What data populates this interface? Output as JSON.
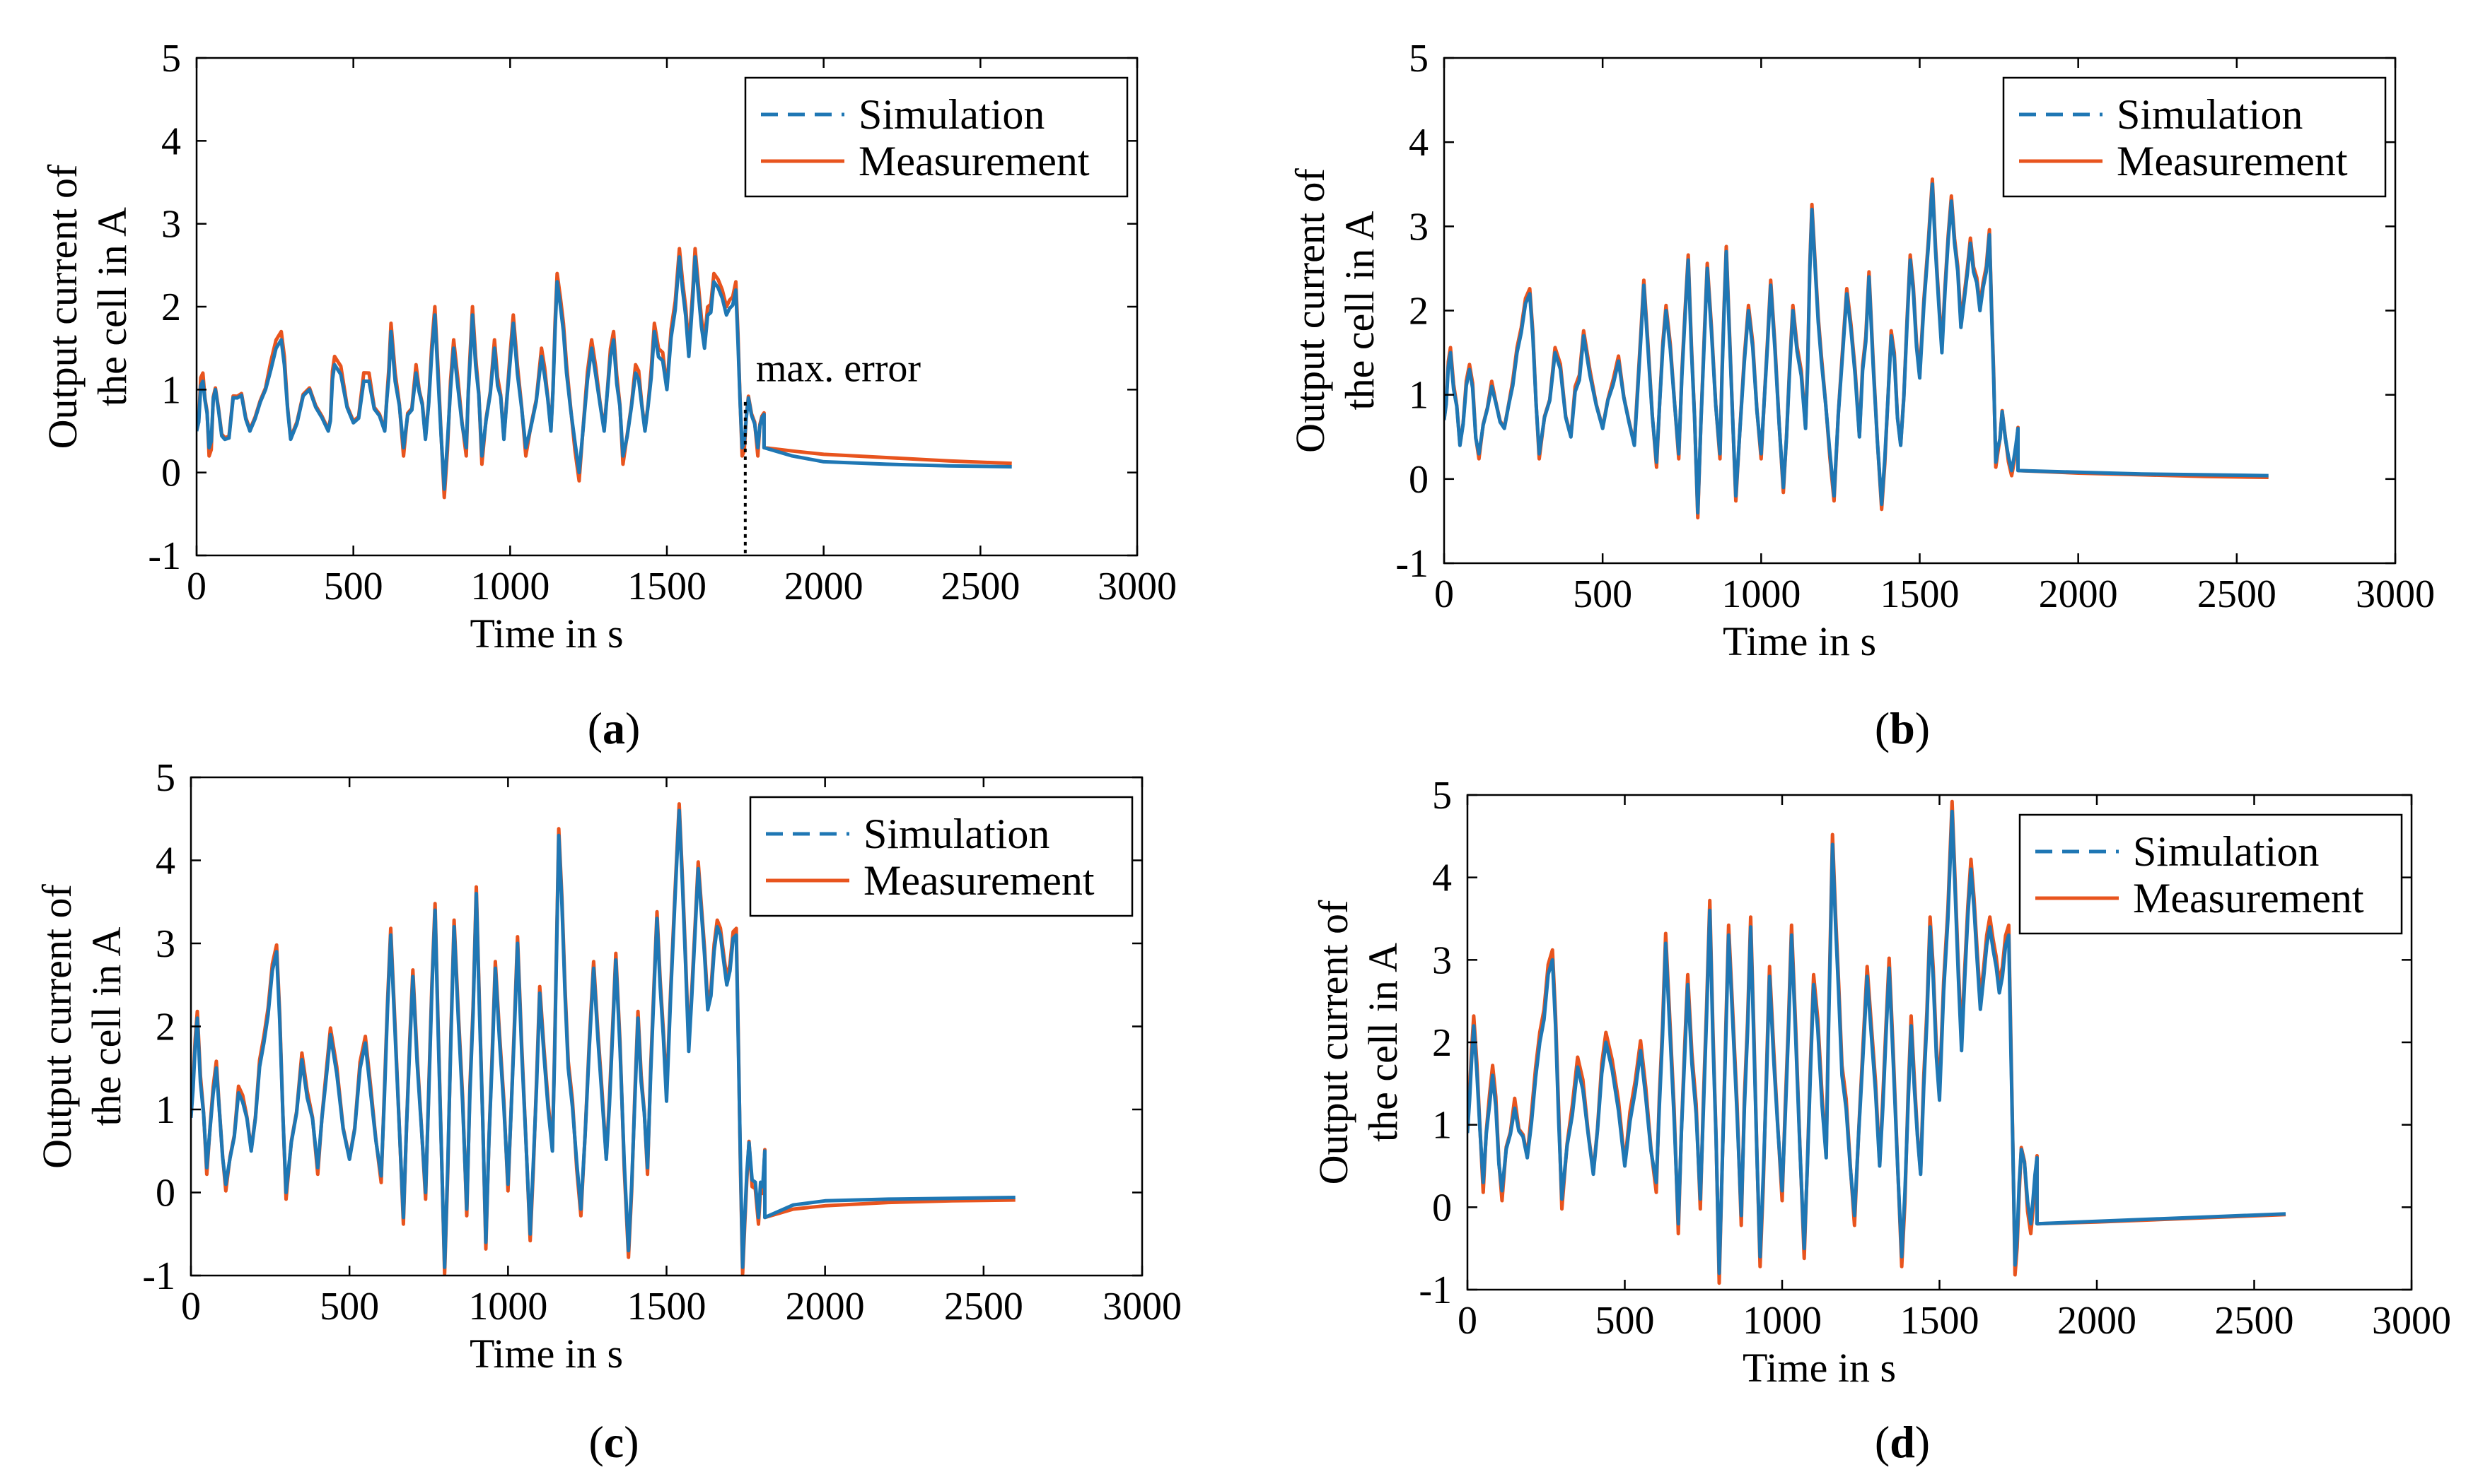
{
  "chart_data": [
    {
      "type": "line",
      "panel": "a",
      "caption_letter": "a",
      "caption_open": "(",
      "caption_close": ")",
      "xlabel": "Time in s",
      "ylabel_line1": "Output current of",
      "ylabel_line2": "the cell in A",
      "xlim": [
        0,
        3000
      ],
      "ylim": [
        -1,
        5
      ],
      "xticks": [
        "0",
        "500",
        "1000",
        "1500",
        "2000",
        "2500",
        "3000"
      ],
      "yticks": [
        "-1",
        "0",
        "1",
        "2",
        "3",
        "4",
        "5"
      ],
      "legend": [
        "Simulation",
        "Measurement"
      ],
      "legend_position": "top-right",
      "annotation": {
        "text": "max. error",
        "x": 1750
      },
      "peaks": [
        [
          0,
          0.5
        ],
        [
          20,
          1.1
        ],
        [
          40,
          0.3
        ],
        [
          60,
          1.0
        ],
        [
          90,
          0.4
        ],
        [
          130,
          0.9
        ],
        [
          170,
          0.5
        ],
        [
          220,
          1.0
        ],
        [
          270,
          1.6
        ],
        [
          300,
          0.4
        ],
        [
          360,
          1.0
        ],
        [
          420,
          0.5
        ],
        [
          440,
          1.3
        ],
        [
          500,
          0.6
        ],
        [
          550,
          1.1
        ],
        [
          600,
          0.5
        ],
        [
          620,
          1.7
        ],
        [
          660,
          0.3
        ],
        [
          700,
          1.2
        ],
        [
          730,
          0.4
        ],
        [
          760,
          1.9
        ],
        [
          790,
          -0.2
        ],
        [
          820,
          1.5
        ],
        [
          860,
          0.3
        ],
        [
          880,
          1.9
        ],
        [
          910,
          0.2
        ],
        [
          950,
          1.5
        ],
        [
          980,
          0.4
        ],
        [
          1010,
          1.8
        ],
        [
          1050,
          0.3
        ],
        [
          1100,
          1.4
        ],
        [
          1130,
          0.5
        ],
        [
          1150,
          2.3
        ],
        [
          1180,
          1.2
        ],
        [
          1220,
          0.0
        ],
        [
          1260,
          1.5
        ],
        [
          1300,
          0.5
        ],
        [
          1330,
          1.6
        ],
        [
          1360,
          0.2
        ],
        [
          1400,
          1.2
        ],
        [
          1430,
          0.5
        ],
        [
          1460,
          1.7
        ],
        [
          1500,
          1.0
        ],
        [
          1540,
          2.6
        ],
        [
          1570,
          1.4
        ],
        [
          1590,
          2.6
        ],
        [
          1620,
          1.5
        ],
        [
          1650,
          2.3
        ],
        [
          1690,
          1.9
        ],
        [
          1720,
          2.2
        ],
        [
          1740,
          0.3
        ],
        [
          1760,
          0.9
        ],
        [
          1790,
          0.3
        ],
        [
          1810,
          0.7
        ]
      ],
      "sim_decay": [
        [
          1810,
          0.3
        ],
        [
          1900,
          0.2
        ],
        [
          2000,
          0.13
        ],
        [
          2200,
          0.1
        ],
        [
          2400,
          0.08
        ],
        [
          2600,
          0.07
        ]
      ],
      "meas_decay": [
        [
          1810,
          0.3
        ],
        [
          1900,
          0.26
        ],
        [
          2000,
          0.22
        ],
        [
          2200,
          0.18
        ],
        [
          2400,
          0.14
        ],
        [
          2600,
          0.11
        ]
      ],
      "meas_offset": 0.05
    },
    {
      "type": "line",
      "panel": "b",
      "caption_letter": "b",
      "caption_open": "(",
      "caption_close": ")",
      "xlabel": "Time in s",
      "ylabel_line1": "Output current of",
      "ylabel_line2": "the cell in A",
      "xlim": [
        0,
        3000
      ],
      "ylim": [
        -1,
        5
      ],
      "xticks": [
        "0",
        "500",
        "1000",
        "1500",
        "2000",
        "2500",
        "3000"
      ],
      "yticks": [
        "-1",
        "0",
        "1",
        "2",
        "3",
        "4",
        "5"
      ],
      "legend": [
        "Simulation",
        "Measurement"
      ],
      "legend_position": "top-right",
      "peaks": [
        [
          0,
          0.7
        ],
        [
          20,
          1.5
        ],
        [
          50,
          0.4
        ],
        [
          80,
          1.3
        ],
        [
          110,
          0.3
        ],
        [
          150,
          1.1
        ],
        [
          190,
          0.6
        ],
        [
          230,
          1.5
        ],
        [
          270,
          2.2
        ],
        [
          300,
          0.3
        ],
        [
          350,
          1.5
        ],
        [
          400,
          0.5
        ],
        [
          440,
          1.7
        ],
        [
          500,
          0.6
        ],
        [
          550,
          1.4
        ],
        [
          600,
          0.4
        ],
        [
          630,
          2.3
        ],
        [
          670,
          0.2
        ],
        [
          700,
          2.0
        ],
        [
          740,
          0.3
        ],
        [
          770,
          2.6
        ],
        [
          800,
          -0.4
        ],
        [
          830,
          2.5
        ],
        [
          870,
          0.3
        ],
        [
          890,
          2.7
        ],
        [
          920,
          -0.2
        ],
        [
          960,
          2.0
        ],
        [
          1000,
          0.3
        ],
        [
          1030,
          2.3
        ],
        [
          1070,
          -0.1
        ],
        [
          1100,
          2.0
        ],
        [
          1140,
          0.6
        ],
        [
          1160,
          3.2
        ],
        [
          1190,
          1.4
        ],
        [
          1230,
          -0.2
        ],
        [
          1270,
          2.2
        ],
        [
          1310,
          0.5
        ],
        [
          1340,
          2.4
        ],
        [
          1380,
          -0.3
        ],
        [
          1410,
          1.7
        ],
        [
          1440,
          0.4
        ],
        [
          1470,
          2.6
        ],
        [
          1500,
          1.2
        ],
        [
          1540,
          3.5
        ],
        [
          1570,
          1.5
        ],
        [
          1600,
          3.3
        ],
        [
          1630,
          1.8
        ],
        [
          1660,
          2.8
        ],
        [
          1690,
          2.0
        ],
        [
          1720,
          2.9
        ],
        [
          1740,
          0.2
        ],
        [
          1760,
          0.8
        ],
        [
          1790,
          0.1
        ],
        [
          1810,
          0.6
        ]
      ],
      "sim_decay": [
        [
          1810,
          0.1
        ],
        [
          2000,
          0.08
        ],
        [
          2200,
          0.06
        ],
        [
          2400,
          0.05
        ],
        [
          2600,
          0.04
        ]
      ],
      "meas_decay": [
        [
          1810,
          0.1
        ],
        [
          2000,
          0.07
        ],
        [
          2200,
          0.05
        ],
        [
          2400,
          0.03
        ],
        [
          2600,
          0.02
        ]
      ],
      "meas_offset": 0.03
    },
    {
      "type": "line",
      "panel": "c",
      "caption_letter": "c",
      "caption_open": "(",
      "caption_close": ")",
      "xlabel": "Time in s",
      "ylabel_line1": "Output current of",
      "ylabel_line2": "the cell in A",
      "xlim": [
        0,
        3000
      ],
      "ylim": [
        -1,
        5
      ],
      "xticks": [
        "0",
        "500",
        "1000",
        "1500",
        "2000",
        "2500",
        "3000"
      ],
      "yticks": [
        "-1",
        "0",
        "1",
        "2",
        "3",
        "4",
        "5"
      ],
      "legend": [
        "Simulation",
        "Measurement"
      ],
      "legend_position": "top-right",
      "peaks": [
        [
          0,
          0.9
        ],
        [
          20,
          2.1
        ],
        [
          50,
          0.3
        ],
        [
          80,
          1.5
        ],
        [
          110,
          0.1
        ],
        [
          150,
          1.2
        ],
        [
          190,
          0.5
        ],
        [
          230,
          1.8
        ],
        [
          270,
          2.9
        ],
        [
          300,
          0.0
        ],
        [
          350,
          1.6
        ],
        [
          400,
          0.3
        ],
        [
          440,
          1.9
        ],
        [
          500,
          0.4
        ],
        [
          550,
          1.8
        ],
        [
          600,
          0.2
        ],
        [
          630,
          3.1
        ],
        [
          670,
          -0.3
        ],
        [
          700,
          2.6
        ],
        [
          740,
          0.0
        ],
        [
          770,
          3.4
        ],
        [
          800,
          -0.9
        ],
        [
          830,
          3.2
        ],
        [
          870,
          -0.2
        ],
        [
          900,
          3.6
        ],
        [
          930,
          -0.6
        ],
        [
          960,
          2.7
        ],
        [
          1000,
          0.1
        ],
        [
          1030,
          3.0
        ],
        [
          1070,
          -0.5
        ],
        [
          1100,
          2.4
        ],
        [
          1140,
          0.5
        ],
        [
          1160,
          4.3
        ],
        [
          1190,
          1.5
        ],
        [
          1230,
          -0.2
        ],
        [
          1270,
          2.7
        ],
        [
          1310,
          0.4
        ],
        [
          1340,
          2.8
        ],
        [
          1380,
          -0.7
        ],
        [
          1410,
          2.1
        ],
        [
          1440,
          0.3
        ],
        [
          1470,
          3.3
        ],
        [
          1500,
          1.1
        ],
        [
          1540,
          4.6
        ],
        [
          1570,
          1.7
        ],
        [
          1600,
          3.9
        ],
        [
          1630,
          2.2
        ],
        [
          1660,
          3.2
        ],
        [
          1690,
          2.5
        ],
        [
          1720,
          3.1
        ],
        [
          1740,
          -0.9
        ],
        [
          1760,
          0.6
        ],
        [
          1790,
          -0.3
        ],
        [
          1810,
          0.5
        ]
      ],
      "sim_decay": [
        [
          1810,
          -0.3
        ],
        [
          1900,
          -0.15
        ],
        [
          2000,
          -0.1
        ],
        [
          2200,
          -0.08
        ],
        [
          2400,
          -0.07
        ],
        [
          2600,
          -0.06
        ]
      ],
      "meas_decay": [
        [
          1810,
          -0.3
        ],
        [
          1900,
          -0.2
        ],
        [
          2000,
          -0.16
        ],
        [
          2200,
          -0.12
        ],
        [
          2400,
          -0.1
        ],
        [
          2600,
          -0.09
        ]
      ],
      "meas_offset": 0.04
    },
    {
      "type": "line",
      "panel": "d",
      "caption_letter": "d",
      "caption_open": "(",
      "caption_close": ")",
      "xlabel": "Time in s",
      "ylabel_line1": "Output current of",
      "ylabel_line2": "the cell in A",
      "xlim": [
        0,
        3000
      ],
      "ylim": [
        -1,
        5
      ],
      "xticks": [
        "0",
        "500",
        "1000",
        "1500",
        "2000",
        "2500",
        "3000"
      ],
      "yticks": [
        "-1",
        "0",
        "1",
        "2",
        "3",
        "4",
        "5"
      ],
      "legend": [
        "Simulation",
        "Measurement"
      ],
      "legend_position": "top-right",
      "peaks": [
        [
          0,
          0.9
        ],
        [
          20,
          2.2
        ],
        [
          50,
          0.3
        ],
        [
          80,
          1.6
        ],
        [
          110,
          0.2
        ],
        [
          150,
          1.2
        ],
        [
          190,
          0.6
        ],
        [
          230,
          2.0
        ],
        [
          270,
          3.0
        ],
        [
          300,
          0.1
        ],
        [
          350,
          1.7
        ],
        [
          400,
          0.4
        ],
        [
          440,
          2.0
        ],
        [
          500,
          0.5
        ],
        [
          550,
          1.9
        ],
        [
          600,
          0.3
        ],
        [
          630,
          3.2
        ],
        [
          670,
          -0.2
        ],
        [
          700,
          2.7
        ],
        [
          740,
          0.1
        ],
        [
          770,
          3.6
        ],
        [
          800,
          -0.8
        ],
        [
          830,
          3.3
        ],
        [
          870,
          -0.1
        ],
        [
          900,
          3.4
        ],
        [
          930,
          -0.6
        ],
        [
          960,
          2.8
        ],
        [
          1000,
          0.2
        ],
        [
          1030,
          3.3
        ],
        [
          1070,
          -0.5
        ],
        [
          1100,
          2.7
        ],
        [
          1140,
          0.6
        ],
        [
          1160,
          4.4
        ],
        [
          1190,
          1.6
        ],
        [
          1230,
          -0.1
        ],
        [
          1270,
          2.8
        ],
        [
          1310,
          0.5
        ],
        [
          1340,
          2.9
        ],
        [
          1380,
          -0.6
        ],
        [
          1410,
          2.2
        ],
        [
          1440,
          0.4
        ],
        [
          1470,
          3.4
        ],
        [
          1500,
          1.3
        ],
        [
          1540,
          4.8
        ],
        [
          1570,
          1.9
        ],
        [
          1600,
          4.1
        ],
        [
          1630,
          2.4
        ],
        [
          1660,
          3.4
        ],
        [
          1690,
          2.6
        ],
        [
          1720,
          3.3
        ],
        [
          1740,
          -0.7
        ],
        [
          1760,
          0.7
        ],
        [
          1790,
          -0.2
        ],
        [
          1810,
          0.6
        ]
      ],
      "sim_decay": [
        [
          1810,
          -0.2
        ],
        [
          2000,
          -0.17
        ],
        [
          2200,
          -0.14
        ],
        [
          2400,
          -0.11
        ],
        [
          2600,
          -0.08
        ]
      ],
      "meas_decay": [
        [
          1810,
          -0.2
        ],
        [
          2000,
          -0.18
        ],
        [
          2200,
          -0.15
        ],
        [
          2400,
          -0.12
        ],
        [
          2600,
          -0.09
        ]
      ],
      "meas_offset": 0.06
    }
  ],
  "colors": {
    "simulation": "#1f77b4",
    "measurement": "#e8541e",
    "axis": "#000000"
  }
}
